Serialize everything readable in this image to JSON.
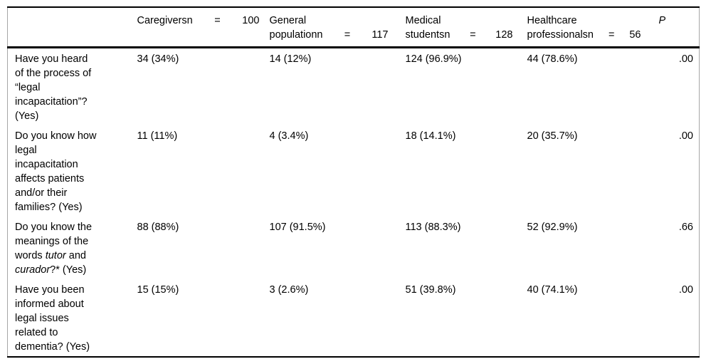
{
  "table": {
    "corner_label": "",
    "columns": [
      {
        "label": "Caregiversn = 100"
      },
      {
        "label": "General\npopulationn = 117"
      },
      {
        "label": "Medical\nstudentsn = 128"
      },
      {
        "label": "Healthcare\nprofessionalsn = 56"
      },
      {
        "label": "P"
      }
    ],
    "rows": [
      {
        "question": [
          {
            "t": "Have you heard\nof the process of\n“legal\nincapacitation”?\n(Yes)"
          }
        ],
        "values": [
          "34 (34%)",
          "14 (12%)",
          "124 (96.9%)",
          "44 (78.6%)"
        ],
        "p": ".00"
      },
      {
        "question": [
          {
            "t": "Do you know how\nlegal\nincapacitation\naffects patients\nand/or their\nfamilies? (Yes)"
          }
        ],
        "values": [
          "11 (11%)",
          "4 (3.4%)",
          "18 (14.1%)",
          "20 (35.7%)"
        ],
        "p": ".00"
      },
      {
        "question": [
          {
            "t": "Do you know the\nmeanings of the\nwords "
          },
          {
            "t": "tutor",
            "i": true
          },
          {
            "t": " and\n"
          },
          {
            "t": "curador",
            "i": true
          },
          {
            "t": "?* (Yes)"
          }
        ],
        "values": [
          "88 (88%)",
          "107 (91.5%)",
          "113 (88.3%)",
          "52 (92.9%)"
        ],
        "p": ".66"
      },
      {
        "question": [
          {
            "t": "Have you been\ninformed about\nlegal issues\nrelated to\ndementia? (Yes)"
          }
        ],
        "values": [
          "15 (15%)",
          "3 (2.6%)",
          "51 (39.8%)",
          "40 (74.1%)"
        ],
        "p": ".00"
      }
    ]
  },
  "colors": {
    "rule": "#000000",
    "frame": "#a6a6a6",
    "text": "#000000",
    "background": "#ffffff"
  }
}
